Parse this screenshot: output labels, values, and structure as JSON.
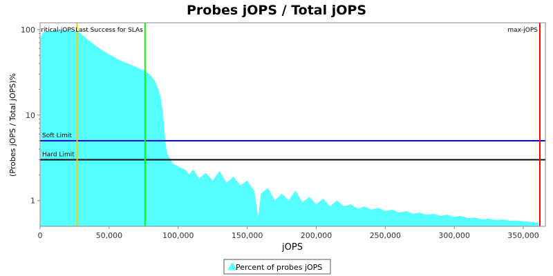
{
  "chart_data": {
    "type": "area",
    "title": "Probes jOPS / Total jOPS",
    "xlabel": "jOPS",
    "ylabel": "(Probes jOPS / Total jOPS)%",
    "xlim": [
      0,
      366000
    ],
    "ylim": [
      0.5,
      120
    ],
    "yscale": "log",
    "grid": false,
    "legend_position": "bottom-center",
    "x_ticks": [
      0,
      50000,
      100000,
      150000,
      200000,
      250000,
      300000,
      350000
    ],
    "x_tick_labels": [
      "0",
      "50,000",
      "100,000",
      "150,000",
      "200,000",
      "250,000",
      "300,000",
      "350,000"
    ],
    "y_ticks": [
      1,
      10,
      100
    ],
    "y_tick_labels": [
      "1",
      "10",
      "100"
    ],
    "series": [
      {
        "name": "Percent of probes jOPS",
        "color": "#55ffff",
        "x": [
          500,
          2000,
          5000,
          10000,
          15000,
          20000,
          25000,
          27000,
          30000,
          35000,
          40000,
          45000,
          50000,
          55000,
          60000,
          65000,
          70000,
          75000,
          78000,
          80000,
          83000,
          85000,
          87000,
          88000,
          89000,
          90000,
          91000,
          92000,
          94000,
          96000,
          98000,
          100000,
          102000,
          105000,
          108000,
          111000,
          115000,
          120000,
          125000,
          130000,
          135000,
          140000,
          145000,
          150000,
          155000,
          158000,
          160000,
          165000,
          170000,
          175000,
          180000,
          185000,
          190000,
          195000,
          200000,
          205000,
          210000,
          215000,
          220000,
          225000,
          230000,
          235000,
          240000,
          245000,
          250000,
          255000,
          260000,
          265000,
          270000,
          275000,
          280000,
          285000,
          290000,
          295000,
          300000,
          305000,
          310000,
          315000,
          320000,
          325000,
          330000,
          335000,
          340000,
          345000,
          350000,
          355000,
          360000,
          361000
        ],
        "y": [
          80,
          92,
          95,
          97,
          98,
          98,
          97,
          95,
          88,
          75,
          65,
          57,
          51,
          46,
          42,
          39,
          36,
          33,
          31,
          29,
          25,
          21,
          17,
          13,
          10,
          6.5,
          4.3,
          3.5,
          3.1,
          2.7,
          2.6,
          2.5,
          2.4,
          2.3,
          2.0,
          2.3,
          1.8,
          2.1,
          1.7,
          2.2,
          1.6,
          1.9,
          1.5,
          1.7,
          1.3,
          0.6,
          1.2,
          1.4,
          1.0,
          1.2,
          1.0,
          1.3,
          0.95,
          1.1,
          0.9,
          1.05,
          0.85,
          1.0,
          0.85,
          0.9,
          0.8,
          0.85,
          0.78,
          0.82,
          0.75,
          0.78,
          0.72,
          0.75,
          0.7,
          0.72,
          0.68,
          0.7,
          0.66,
          0.68,
          0.64,
          0.66,
          0.62,
          0.63,
          0.6,
          0.61,
          0.59,
          0.6,
          0.58,
          0.58,
          0.57,
          0.56,
          0.55,
          0.55
        ]
      }
    ],
    "vertical_markers": [
      {
        "label": "critical-jOPS",
        "x": 26800,
        "color": "#ffc800"
      },
      {
        "label": "Last Success for SLAs",
        "x": 76000,
        "color": "#00ff00"
      },
      {
        "label": "max-jOPS",
        "x": 362000,
        "color": "#ff0000"
      }
    ],
    "horizontal_markers": [
      {
        "label": "Soft Limit",
        "y": 5,
        "color": "#0000ff"
      },
      {
        "label": "Hard Limit",
        "y": 3,
        "color": "#000000"
      }
    ],
    "legend": [
      {
        "label": "Percent of probes jOPS",
        "color": "#55ffff"
      }
    ]
  }
}
